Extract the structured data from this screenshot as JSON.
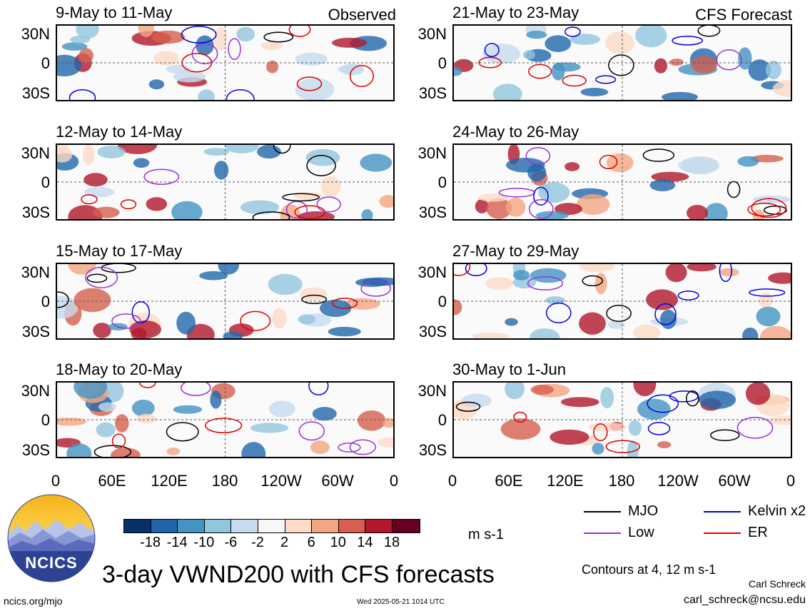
{
  "panels": [
    {
      "title": "9-May to 11-May",
      "tag": "Observed"
    },
    {
      "title": "21-May to 23-May",
      "tag": "CFS Forecast"
    },
    {
      "title": "12-May to 14-May",
      "tag": ""
    },
    {
      "title": "24-May to 26-May",
      "tag": ""
    },
    {
      "title": "15-May to 17-May",
      "tag": ""
    },
    {
      "title": "27-May to 29-May",
      "tag": ""
    },
    {
      "title": "18-May to 20-May",
      "tag": ""
    },
    {
      "title": "30-May to 1-Jun",
      "tag": ""
    }
  ],
  "lat_labels": [
    "30N",
    "0",
    "30S"
  ],
  "lon_labels": [
    "0",
    "60E",
    "120E",
    "180",
    "120W",
    "60W",
    "0"
  ],
  "colorbar": {
    "colors": [
      "#08306b",
      "#2166ac",
      "#4393c3",
      "#92c5de",
      "#c6dbef",
      "#f7f7f7",
      "#fddbc7",
      "#f4a582",
      "#d6604d",
      "#b2182b",
      "#67001f"
    ],
    "ticks": [
      "-18",
      "-14",
      "-10",
      "-6",
      "-2",
      "2",
      "6",
      "10",
      "14",
      "18"
    ],
    "units": "m s-1"
  },
  "legend": [
    {
      "label": "MJO",
      "color": "#000000"
    },
    {
      "label": "Kelvin x2",
      "color": "#0000dd"
    },
    {
      "label": "Low",
      "color": "#9b30d9"
    },
    {
      "label": "ER",
      "color": "#dd0000"
    }
  ],
  "logo_text": "NCICS",
  "main_title": "3-day VWND200 with CFS forecasts",
  "contour_note": "Contours at 4, 12 m s-1",
  "author": "Carl Schreck",
  "email": "carl_schreck@ncsu.edu",
  "site": "ncics.org/mjo",
  "timestamp": "Wed 2025-05-21 1014 UTC"
}
